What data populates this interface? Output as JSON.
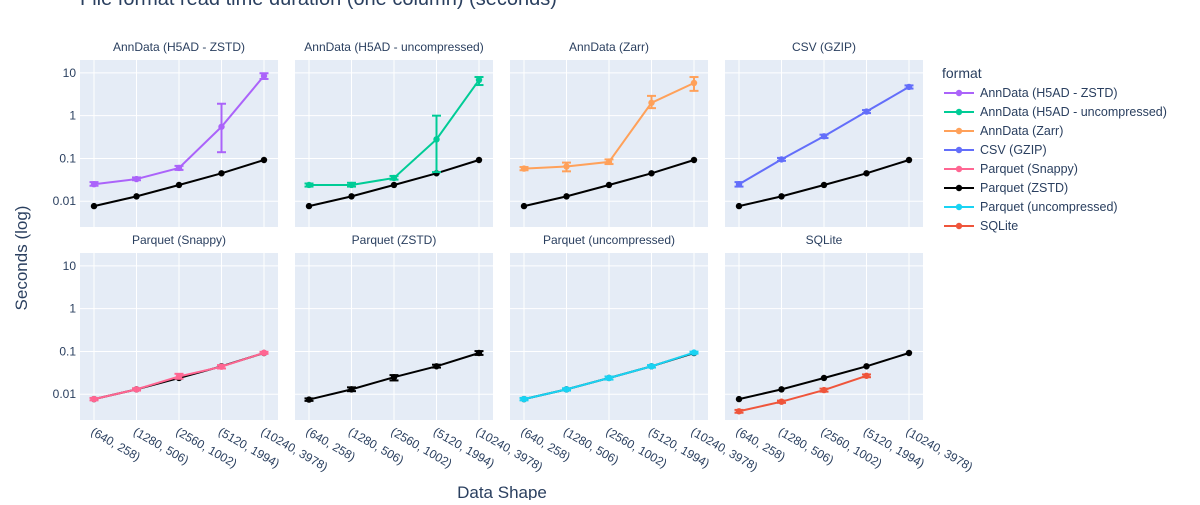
{
  "chart_data": {
    "type": "line",
    "title": "File format read time duration (one column) (seconds)",
    "xlabel": "Data Shape",
    "ylabel": "Seconds (log)",
    "yscale": "log",
    "ylim": [
      0.0025,
      20
    ],
    "y_ticks": [
      {
        "value": 0.01,
        "label": "0.01"
      },
      {
        "value": 0.1,
        "label": "0.1"
      },
      {
        "value": 1,
        "label": "1"
      },
      {
        "value": 10,
        "label": "10"
      }
    ],
    "categories": [
      "(640, 258)",
      "(1280, 506)",
      "(2560, 1002)",
      "(5120, 1994)",
      "(10240, 3978)"
    ],
    "grid": true,
    "legend": {
      "title": "format",
      "placement": "right",
      "entries": [
        {
          "name": "AnnData (H5AD - ZSTD)",
          "color": "#ab63fa"
        },
        {
          "name": "AnnData (H5AD - uncompressed)",
          "color": "#00cc96"
        },
        {
          "name": "AnnData (Zarr)",
          "color": "#ffa15a"
        },
        {
          "name": "CSV (GZIP)",
          "color": "#636efa"
        },
        {
          "name": "Parquet (Snappy)",
          "color": "#ff6692"
        },
        {
          "name": "Parquet (ZSTD)",
          "color": "#000000"
        },
        {
          "name": "Parquet (uncompressed)",
          "color": "#19d3f3"
        },
        {
          "name": "SQLite",
          "color": "#ef553b"
        }
      ]
    },
    "reference_series": {
      "name": "Parquet (ZSTD)",
      "color": "#000000",
      "values": [
        0.0077,
        0.013,
        0.024,
        0.045,
        0.092
      ]
    },
    "facets": [
      {
        "title": "AnnData (H5AD - ZSTD)",
        "series": {
          "name": "AnnData (H5AD - ZSTD)",
          "color": "#ab63fa",
          "values": [
            0.025,
            0.033,
            0.06,
            0.55,
            8.5
          ],
          "err_low": [
            0.023,
            0.031,
            0.054,
            0.14,
            7.2
          ],
          "err_high": [
            0.028,
            0.036,
            0.067,
            1.9,
            9.8
          ]
        }
      },
      {
        "title": "AnnData (H5AD - uncompressed)",
        "series": {
          "name": "AnnData (H5AD - uncompressed)",
          "color": "#00cc96",
          "values": [
            0.024,
            0.024,
            0.035,
            0.28,
            6.8
          ],
          "err_low": [
            0.022,
            0.022,
            0.032,
            0.048,
            5.2
          ],
          "err_high": [
            0.026,
            0.027,
            0.039,
            1.0,
            8.0
          ]
        }
      },
      {
        "title": "AnnData (Zarr)",
        "series": {
          "name": "AnnData (Zarr)",
          "color": "#ffa15a",
          "values": [
            0.058,
            0.065,
            0.083,
            2.0,
            5.8
          ],
          "err_low": [
            0.053,
            0.05,
            0.074,
            1.5,
            3.8
          ],
          "err_high": [
            0.063,
            0.08,
            0.095,
            2.9,
            8.0
          ]
        }
      },
      {
        "title": "CSV (GZIP)",
        "series": {
          "name": "CSV (GZIP)",
          "color": "#636efa",
          "values": [
            0.025,
            0.095,
            0.33,
            1.25,
            4.7
          ],
          "err_low": [
            0.022,
            0.088,
            0.3,
            1.15,
            4.3
          ],
          "err_high": [
            0.028,
            0.103,
            0.36,
            1.35,
            5.1
          ]
        }
      },
      {
        "title": "Parquet (Snappy)",
        "series": {
          "name": "Parquet (Snappy)",
          "color": "#ff6692",
          "values": [
            0.0077,
            0.013,
            0.026,
            0.044,
            0.093
          ],
          "err_low": [
            0.0072,
            0.0122,
            0.023,
            0.04,
            0.088
          ],
          "err_high": [
            0.0082,
            0.0138,
            0.03,
            0.048,
            0.098
          ]
        }
      },
      {
        "title": "Parquet (ZSTD)",
        "series": {
          "name": "Parquet (ZSTD)",
          "color": "#000000",
          "values": [
            0.0075,
            0.013,
            0.025,
            0.045,
            0.092
          ],
          "err_low": [
            0.007,
            0.0118,
            0.021,
            0.042,
            0.083
          ],
          "err_high": [
            0.008,
            0.0145,
            0.028,
            0.049,
            0.102
          ]
        }
      },
      {
        "title": "Parquet (uncompressed)",
        "series": {
          "name": "Parquet (uncompressed)",
          "color": "#19d3f3",
          "values": [
            0.0077,
            0.013,
            0.024,
            0.045,
            0.094
          ],
          "err_low": [
            0.0072,
            0.0122,
            0.022,
            0.042,
            0.089
          ],
          "err_high": [
            0.0082,
            0.0138,
            0.026,
            0.048,
            0.099
          ]
        }
      },
      {
        "title": "SQLite",
        "series": {
          "name": "SQLite",
          "color": "#ef553b",
          "values": [
            0.004,
            0.0067,
            0.0125,
            0.027
          ],
          "err_low": [
            0.0037,
            0.0063,
            0.0115,
            0.025
          ],
          "err_high": [
            0.0043,
            0.0071,
            0.0135,
            0.029
          ]
        }
      }
    ]
  }
}
